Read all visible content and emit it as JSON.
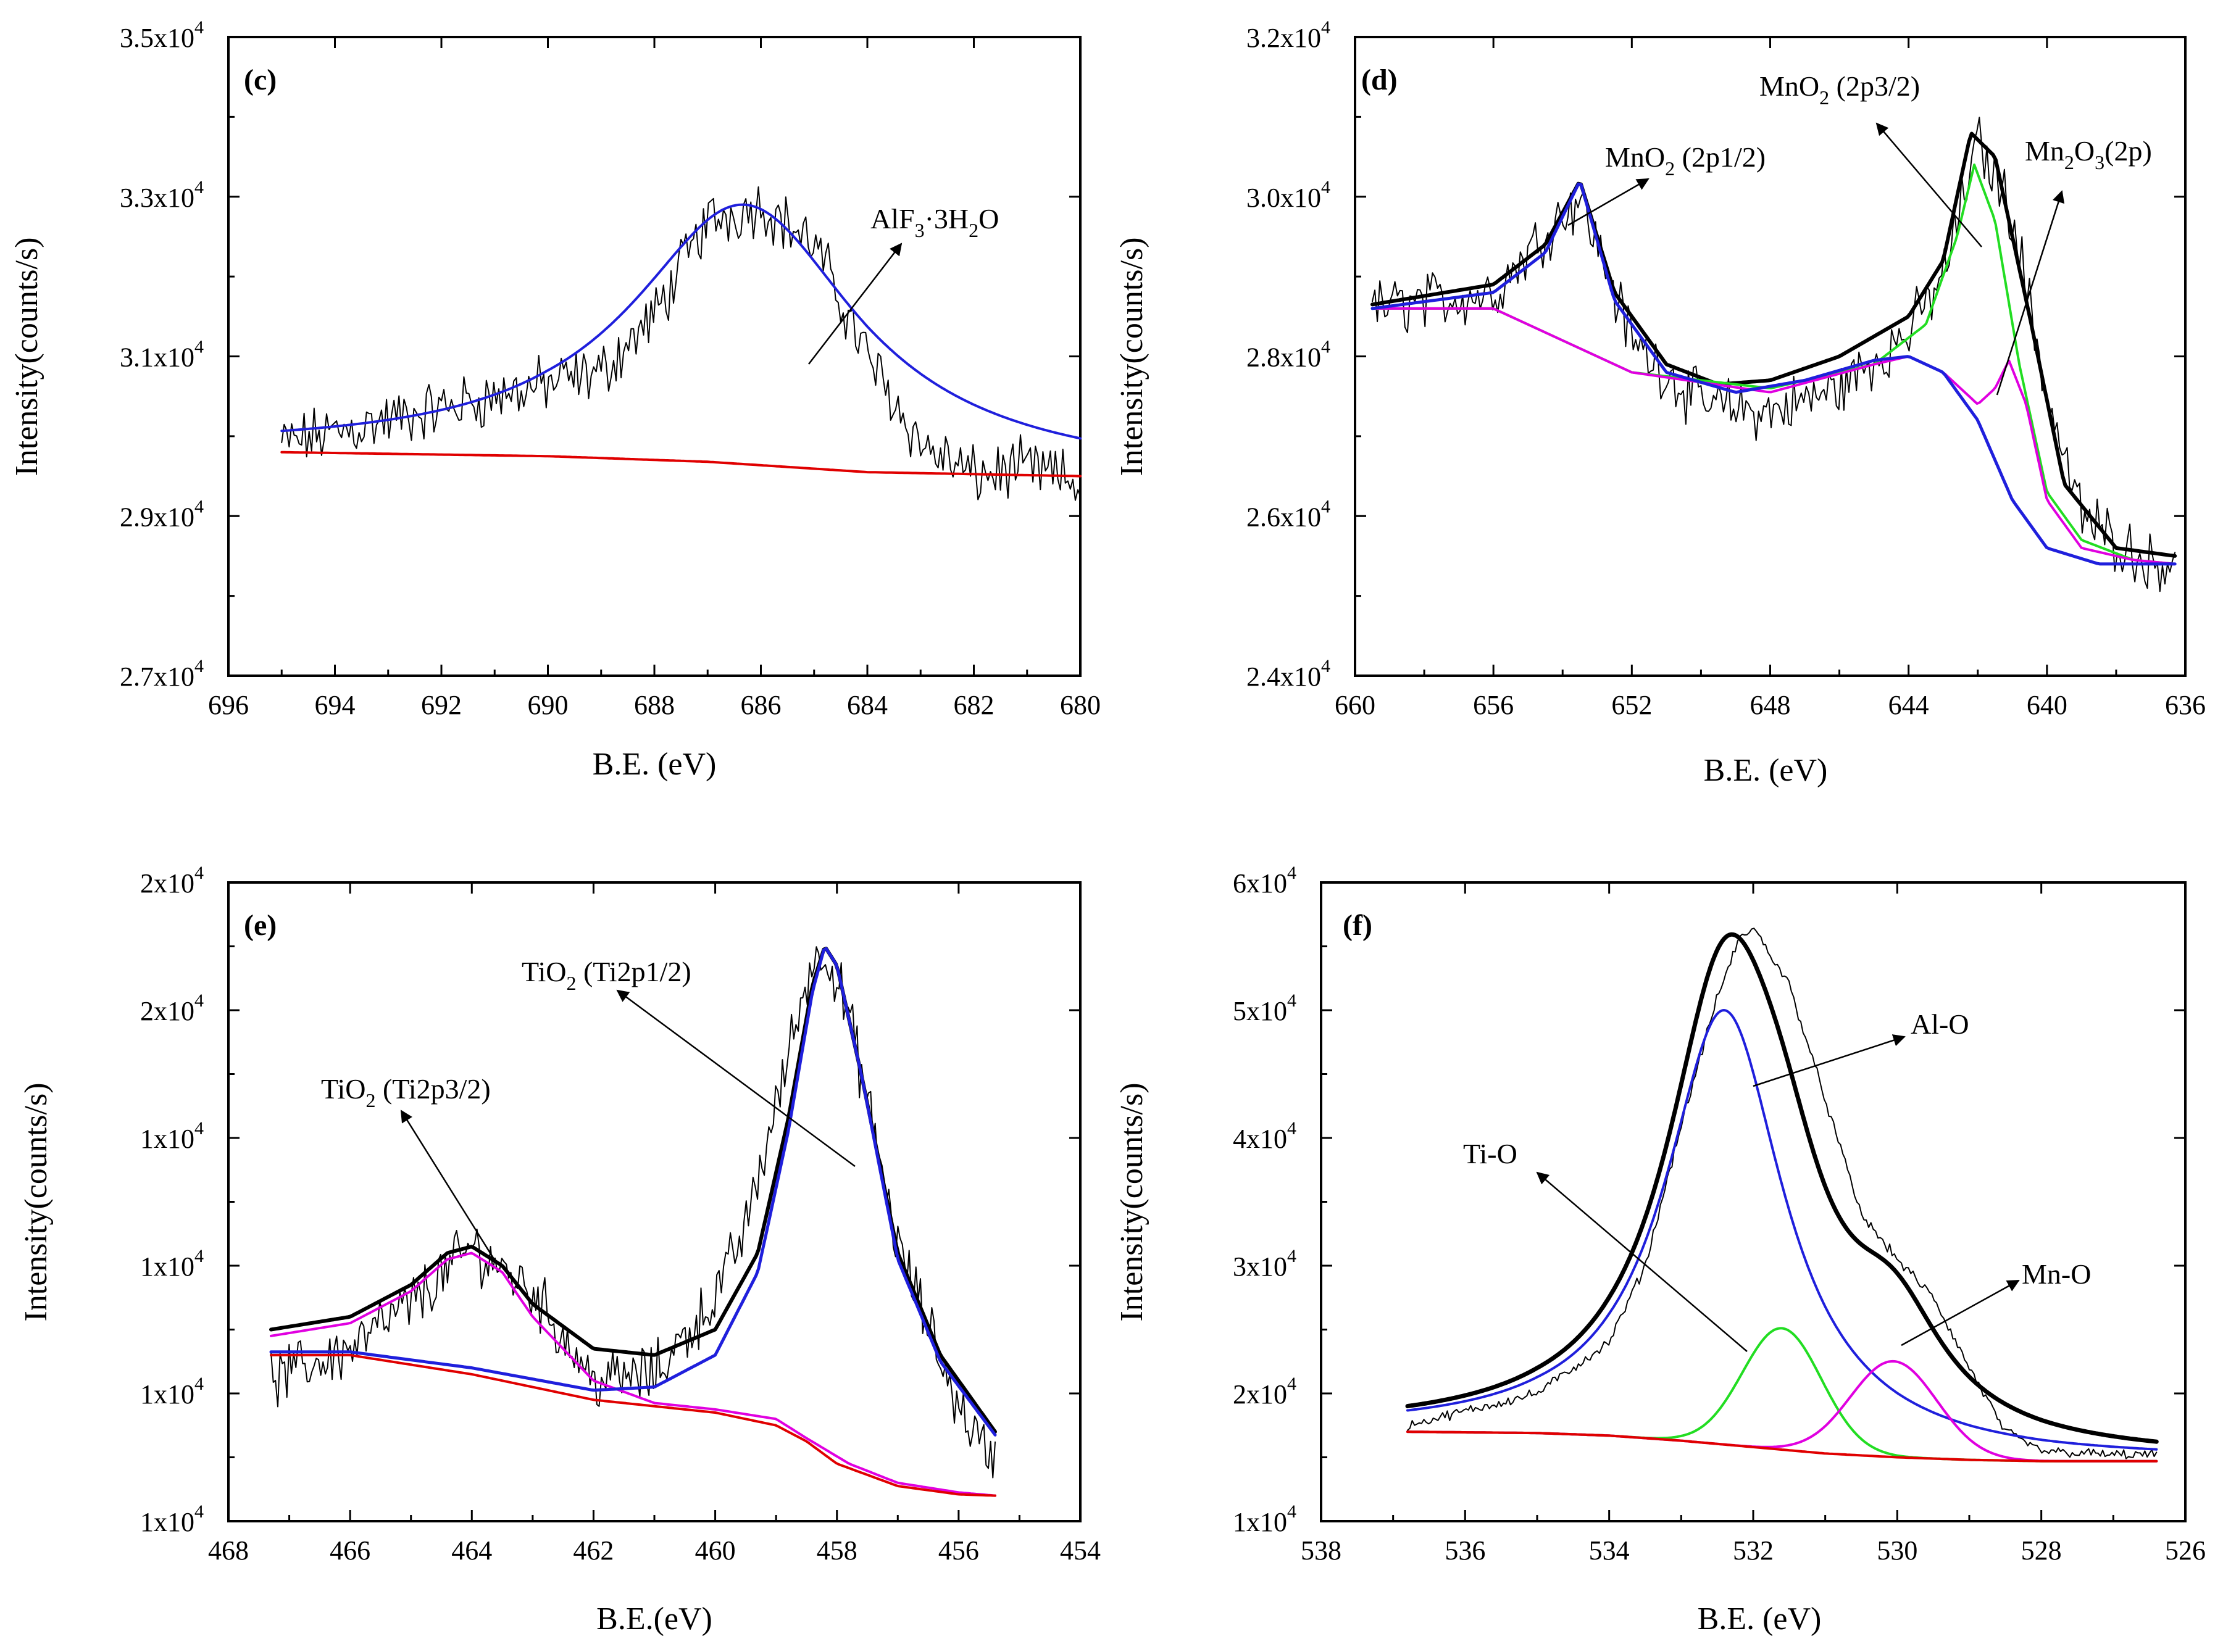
{
  "chart_data": [
    {
      "type": "line",
      "panel_label": "(c)",
      "xlabel": "B.E. (eV)",
      "ylabel": "Intensity(counts/s)",
      "xlim": [
        696,
        680
      ],
      "ylim": [
        27000,
        35000
      ],
      "xticks": [
        696,
        694,
        692,
        690,
        688,
        686,
        684,
        682,
        680
      ],
      "yticks": [
        27000,
        29000,
        31000,
        33000,
        35000
      ],
      "ytick_labels": [
        "2.7x10",
        "2.9x10",
        "3.1x10",
        "3.3x10",
        "3.5x10"
      ],
      "ytick_exp": "4",
      "series": [
        {
          "name": "raw",
          "color": "#000000",
          "kind": "noisy",
          "x": [
            695,
            693,
            691,
            689,
            688,
            687,
            686,
            685,
            684,
            683,
            682,
            681,
            680
          ],
          "y": [
            29900,
            30200,
            30500,
            30800,
            31500,
            32700,
            32900,
            32400,
            31000,
            29900,
            29500,
            29600,
            29400
          ]
        },
        {
          "name": "fit",
          "color": "#1f1fdc",
          "kind": "lorentz",
          "peaks": [
            {
              "c": 686.3,
              "a": 3250,
              "w": 2.6
            }
          ],
          "base": "bg"
        },
        {
          "name": "background",
          "color": "#e00000",
          "kind": "bg",
          "x": [
            695,
            690,
            687,
            684,
            680
          ],
          "y": [
            29800,
            29750,
            29680,
            29550,
            29500
          ]
        }
      ],
      "annotations": [
        {
          "text": "AlF",
          "sub": "3",
          "rest": "·3H",
          "sub2": "2",
          "tail": "O"
        }
      ]
    },
    {
      "type": "line",
      "panel_label": "(d)",
      "xlabel": "B.E. (eV)",
      "ylabel": "Intensity(counts/s)",
      "xlim": [
        660,
        636
      ],
      "ylim": [
        24000,
        32000
      ],
      "xticks": [
        660,
        656,
        652,
        648,
        644,
        640,
        636
      ],
      "yticks": [
        24000,
        26000,
        28000,
        30000,
        32000
      ],
      "ytick_labels": [
        "2.4x10",
        "2.6x10",
        "2.8x10",
        "3.0x10",
        "3.2x10"
      ],
      "ytick_exp": "4",
      "series": [
        {
          "name": "raw",
          "color": "#000000",
          "kind": "noisy",
          "x": [
            659.5,
            656,
            654,
            653.5,
            652,
            650,
            648,
            646,
            644,
            643,
            642,
            641,
            640,
            639,
            637,
            636.3
          ],
          "y": [
            28600,
            28800,
            29800,
            30000,
            28200,
            27400,
            27300,
            27600,
            28300,
            29000,
            30700,
            29800,
            27500,
            26000,
            25400,
            25500
          ]
        },
        {
          "name": "envelope",
          "color": "#000000",
          "kind": "line",
          "width": 6,
          "x": [
            659.5,
            656,
            654.5,
            653.5,
            652.5,
            651,
            649.5,
            648,
            646,
            644,
            643,
            642.2,
            641.5,
            640.5,
            639.5,
            638,
            636.3
          ],
          "y": [
            28650,
            28900,
            29400,
            30200,
            28800,
            27900,
            27650,
            27700,
            28000,
            28500,
            29200,
            30800,
            30500,
            28500,
            26400,
            25600,
            25500
          ]
        },
        {
          "name": "MnO2 2p3/2",
          "color": "#22dd22",
          "kind": "line",
          "x": [
            659.5,
            656,
            652,
            648,
            645,
            643.5,
            642.6,
            642.1,
            641.5,
            640.8,
            640,
            639,
            637.5,
            636.3
          ],
          "y": [
            28600,
            28600,
            27800,
            27600,
            27900,
            28400,
            29500,
            30400,
            29700,
            27900,
            26300,
            25700,
            25450,
            25400
          ]
        },
        {
          "name": "Mn2O3 2p",
          "color": "#e000e0",
          "kind": "line",
          "x": [
            659.5,
            656,
            652,
            648,
            645,
            644,
            643,
            642,
            641.5,
            641.1,
            640.6,
            640,
            639,
            637.5,
            636.3
          ],
          "y": [
            28600,
            28600,
            27800,
            27550,
            27900,
            28000,
            27800,
            27400,
            27600,
            27950,
            27400,
            26200,
            25600,
            25450,
            25400
          ]
        },
        {
          "name": "MnO2 2p1/2",
          "color": "#1f1fdc",
          "kind": "line",
          "width": 5,
          "x": [
            659.5,
            656,
            654.5,
            653.5,
            652.5,
            651,
            649,
            647,
            645,
            644,
            643,
            642,
            641,
            640,
            638.5,
            636.3
          ],
          "y": [
            28600,
            28800,
            29300,
            30200,
            28700,
            27800,
            27550,
            27700,
            27950,
            28000,
            27800,
            27200,
            26200,
            25600,
            25400,
            25400
          ]
        }
      ],
      "annotations": [
        {
          "text": "MnO",
          "sub": "2",
          "rest": " (2p1/2)"
        },
        {
          "text": "MnO",
          "sub": "2",
          "rest": " (2p3/2)"
        },
        {
          "text": "Mn",
          "sub": "2",
          "rest": "O",
          "sub2": "3",
          "tail": "(2p)"
        }
      ]
    },
    {
      "type": "line",
      "panel_label": "(e)",
      "xlabel": "B.E.(eV)",
      "ylabel": "Intensity(counts/s)",
      "xlim": [
        468,
        454
      ],
      "ylim": [
        0,
        10
      ],
      "xticks": [
        468,
        466,
        464,
        462,
        460,
        458,
        456,
        454
      ],
      "yticks": [
        0,
        2,
        4,
        6,
        8,
        10
      ],
      "ytick_labels": [
        "1x10",
        "1x10",
        "1x10",
        "1x10",
        "2x10",
        "2x10"
      ],
      "ytick_exp": "4",
      "series": [
        {
          "name": "raw",
          "color": "#000000",
          "kind": "noisy",
          "x": [
            467.3,
            466,
            465,
            464,
            463,
            462,
            461,
            460,
            459.5,
            459,
            458.5,
            458.2,
            457.8,
            457,
            456,
            455.4
          ],
          "y": [
            2.2,
            2.7,
            3.4,
            4.3,
            3.6,
            2.2,
            2.3,
            3.5,
            4.6,
            6.5,
            8.5,
            9.0,
            7.9,
            4.3,
            1.8,
            0.9
          ]
        },
        {
          "name": "envelope",
          "color": "#000000",
          "kind": "line",
          "width": 6,
          "x": [
            467.3,
            466,
            465,
            464.4,
            464,
            463.5,
            463,
            462,
            461,
            460,
            459.3,
            458.8,
            458.4,
            458.2,
            458,
            457.6,
            457,
            456.3,
            455.4
          ],
          "y": [
            3.0,
            3.2,
            3.7,
            4.2,
            4.3,
            4.0,
            3.4,
            2.7,
            2.6,
            3.0,
            4.2,
            6.3,
            8.4,
            9.0,
            8.7,
            7.0,
            4.2,
            2.6,
            1.4
          ]
        },
        {
          "name": "Ti2p3/2 fit",
          "color": "#e000e0",
          "kind": "line",
          "x": [
            467.3,
            466,
            465,
            464.4,
            464,
            463.5,
            463,
            462,
            461,
            460,
            459,
            458.5,
            457.8,
            457,
            456,
            455.4
          ],
          "y": [
            2.9,
            3.1,
            3.6,
            4.1,
            4.2,
            3.9,
            3.2,
            2.2,
            1.85,
            1.75,
            1.6,
            1.3,
            0.9,
            0.6,
            0.45,
            0.4
          ]
        },
        {
          "name": "Ti2p1/2 fit",
          "color": "#1f1fdc",
          "kind": "line",
          "width": 5,
          "x": [
            467.3,
            466,
            464,
            462,
            461,
            460,
            459.3,
            458.8,
            458.4,
            458.2,
            458,
            457.6,
            457,
            456.3,
            455.4
          ],
          "y": [
            2.65,
            2.65,
            2.4,
            2.05,
            2.1,
            2.6,
            3.9,
            6.1,
            8.3,
            9.0,
            8.7,
            7.0,
            4.1,
            2.5,
            1.35
          ]
        },
        {
          "name": "background",
          "color": "#e00000",
          "kind": "bg",
          "x": [
            467.3,
            466,
            464,
            462,
            461,
            460,
            459,
            458.5,
            458,
            457,
            456,
            455.4
          ],
          "y": [
            2.6,
            2.6,
            2.3,
            1.9,
            1.8,
            1.7,
            1.5,
            1.25,
            0.9,
            0.55,
            0.42,
            0.4
          ]
        }
      ],
      "annotations": [
        {
          "text": "TiO",
          "sub": "2",
          "rest": " (Ti2p1/2)"
        },
        {
          "text": "TiO",
          "sub": "2",
          "rest": " (Ti2p3/2)"
        }
      ]
    },
    {
      "type": "line",
      "panel_label": "(f)",
      "xlabel": "B.E. (eV)",
      "ylabel": "Intensity(counts/s)",
      "xlim": [
        538,
        526
      ],
      "ylim": [
        10000,
        60000
      ],
      "xticks": [
        538,
        536,
        534,
        532,
        530,
        528,
        526
      ],
      "yticks": [
        10000,
        20000,
        30000,
        40000,
        50000,
        60000
      ],
      "ytick_labels": [
        "1x10",
        "2x10",
        "3x10",
        "4x10",
        "5x10",
        "6x10"
      ],
      "ytick_exp": "4",
      "series": [
        {
          "name": "raw",
          "color": "#000000",
          "kind": "noisy-small",
          "x": [
            536.8,
            535,
            534,
            533.5,
            533,
            532.5,
            532.2,
            532,
            531.5,
            531,
            530.5,
            530,
            529.5,
            529,
            528.5,
            528,
            527,
            526.4
          ],
          "y": [
            17500,
            20000,
            24000,
            30000,
            41000,
            51000,
            55500,
            56500,
            52000,
            43000,
            34000,
            30500,
            27500,
            22000,
            17000,
            15500,
            15200,
            15200
          ]
        },
        {
          "name": "envelope",
          "color": "#000000",
          "kind": "lorentz",
          "width": 7,
          "peaks": [
            {
              "c": 532.4,
              "a": 34000,
              "w": 1.0
            },
            {
              "c": 531.6,
              "a": 9500,
              "w": 0.8
            },
            {
              "c": 530.05,
              "a": 7500,
              "w": 0.85
            }
          ],
          "base": "bg"
        },
        {
          "name": "Al-O",
          "color": "#1f1fdc",
          "kind": "lorentz",
          "peaks": [
            {
              "c": 532.4,
              "a": 34000,
              "w": 1.0
            }
          ],
          "base": "bg"
        },
        {
          "name": "Ti-O",
          "color": "#22dd22",
          "kind": "gauss",
          "peaks": [
            {
              "c": 531.6,
              "a": 9500,
              "w": 0.55
            }
          ],
          "base": "bg"
        },
        {
          "name": "Mn-O",
          "color": "#e000e0",
          "kind": "gauss",
          "peaks": [
            {
              "c": 530.05,
              "a": 7500,
              "w": 0.6
            }
          ],
          "base": "bg"
        },
        {
          "name": "background",
          "color": "#e00000",
          "kind": "bg",
          "x": [
            536.8,
            535,
            534,
            533,
            532,
            531,
            530,
            529,
            528,
            526.4
          ],
          "y": [
            17000,
            16900,
            16700,
            16300,
            15800,
            15300,
            15000,
            14800,
            14700,
            14700
          ]
        }
      ],
      "annotations": [
        {
          "text": "Al-O"
        },
        {
          "text": "Ti-O"
        },
        {
          "text": "Mn-O"
        }
      ]
    }
  ]
}
